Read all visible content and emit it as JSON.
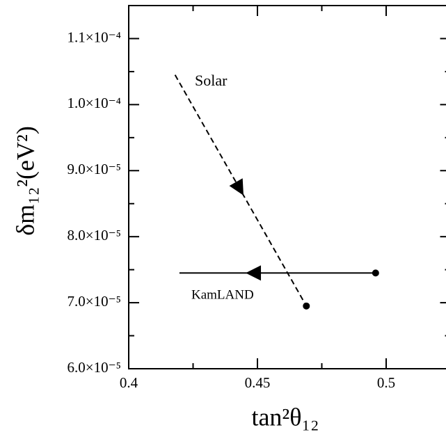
{
  "chart_data": {
    "type": "line",
    "xlabel": "tan²θ₁₂",
    "ylabel": "δm₁₂²(eV²)",
    "xlim": [
      0.4,
      0.525
    ],
    "ylim": [
      6e-05,
      0.000115
    ],
    "xticks": [
      0.4,
      0.45,
      0.5
    ],
    "xminor": [
      0.425,
      0.475,
      0.525
    ],
    "yticks": [
      {
        "value": 6e-05,
        "label": "6.0×10⁻⁵"
      },
      {
        "value": 7e-05,
        "label": "7.0×10⁻⁵"
      },
      {
        "value": 8e-05,
        "label": "8.0×10⁻⁵"
      },
      {
        "value": 9e-05,
        "label": "9.0×10⁻⁵"
      },
      {
        "value": 0.0001,
        "label": "1.0×10⁻⁴"
      },
      {
        "value": 0.00011,
        "label": "1.1×10⁻⁴"
      }
    ],
    "yminor": [
      6.5e-05,
      7.5e-05,
      8.5e-05,
      9.5e-05,
      0.000105
    ],
    "series": [
      {
        "name": "Solar",
        "color": "#000000",
        "dash": true,
        "x": [
          0.418,
          0.469
        ],
        "values": [
          0.0001045,
          6.95e-05
        ]
      },
      {
        "name": "KamLAND",
        "color": "#000000",
        "dash": false,
        "x": [
          0.4197,
          0.4959
        ],
        "values": [
          7.45e-05,
          7.45e-05
        ]
      }
    ]
  }
}
